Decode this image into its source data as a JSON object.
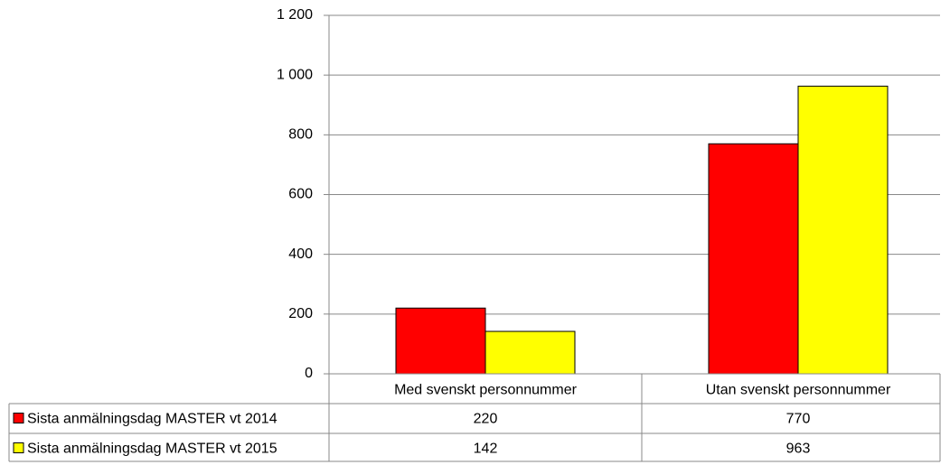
{
  "chart_data": {
    "type": "bar",
    "categories": [
      "Med svenskt personnummer",
      "Utan svenskt personnummer"
    ],
    "series": [
      {
        "name": "Sista anmälningsdag MASTER vt 2014",
        "color": "#ff0000",
        "values": [
          220,
          770
        ]
      },
      {
        "name": "Sista anmälningsdag MASTER vt 2015",
        "color": "#ffff00",
        "values": [
          142,
          963
        ]
      }
    ],
    "ylim": [
      0,
      1200
    ],
    "yticks": [
      0,
      200,
      400,
      600,
      800,
      {
        "value": 1000,
        "label": "1 000"
      },
      {
        "value": 1200,
        "label": "1 200"
      }
    ],
    "grid": true
  }
}
